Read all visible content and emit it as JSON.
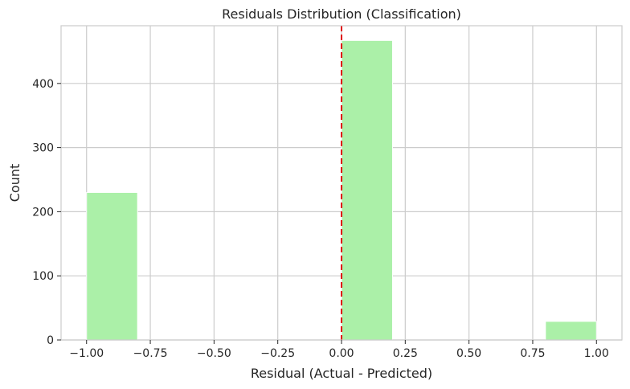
{
  "chart_data": {
    "type": "bar",
    "title": "Residuals Distribution (Classification)",
    "xlabel": "Residual (Actual - Predicted)",
    "ylabel": "Count",
    "xlim": [
      -1.1,
      1.1
    ],
    "ylim": [
      0,
      490
    ],
    "xticks": [
      -1.0,
      -0.75,
      -0.5,
      -0.25,
      0.0,
      0.25,
      0.5,
      0.75,
      1.0
    ],
    "xtick_labels": [
      "−1.00",
      "−0.75",
      "−0.50",
      "−0.25",
      "0.00",
      "0.25",
      "0.50",
      "0.75",
      "1.00"
    ],
    "yticks": [
      0,
      100,
      200,
      300,
      400
    ],
    "ytick_labels": [
      "0",
      "100",
      "200",
      "300",
      "400"
    ],
    "bins": [
      {
        "start": -1.0,
        "end": -0.8,
        "count": 230
      },
      {
        "start": -0.8,
        "end": -0.6,
        "count": 0
      },
      {
        "start": -0.6,
        "end": -0.4,
        "count": 0
      },
      {
        "start": -0.4,
        "end": -0.2,
        "count": 0
      },
      {
        "start": -0.2,
        "end": 0.0,
        "count": 0
      },
      {
        "start": 0.0,
        "end": 0.2,
        "count": 467
      },
      {
        "start": 0.2,
        "end": 0.4,
        "count": 0
      },
      {
        "start": 0.4,
        "end": 0.6,
        "count": 0
      },
      {
        "start": 0.6,
        "end": 0.8,
        "count": 0
      },
      {
        "start": 0.8,
        "end": 1.0,
        "count": 29
      }
    ],
    "reference_line": {
      "x": 0.0,
      "color": "#e00000",
      "style": "dashed"
    },
    "bar_color": "#abf0a8",
    "grid": true
  }
}
